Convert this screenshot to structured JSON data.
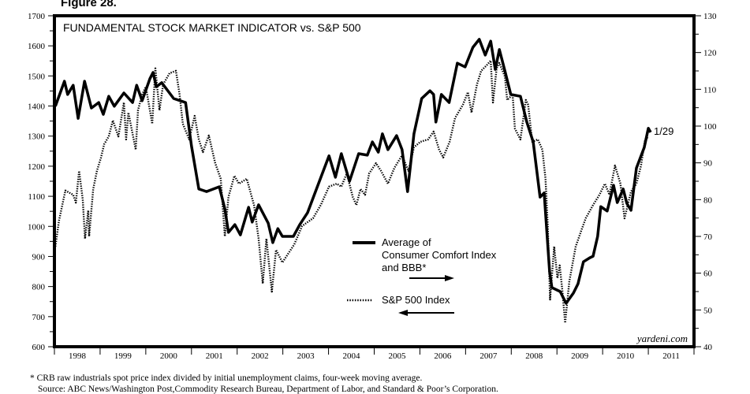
{
  "figure_label": "Figure 28.",
  "chart_data": {
    "type": "line",
    "title": "FUNDAMENTAL STOCK MARKET INDICATOR vs. S&P 500",
    "xlim": [
      1998,
      2012
    ],
    "x_tick_labels": [
      "1998",
      "1999",
      "2000",
      "2001",
      "2002",
      "2003",
      "2004",
      "2005",
      "2006",
      "2007",
      "2008",
      "2009",
      "2010",
      "2011"
    ],
    "y_left": {
      "range": [
        600,
        1700
      ],
      "ticks": [
        600,
        700,
        800,
        900,
        1000,
        1100,
        1200,
        1300,
        1400,
        1500,
        1600,
        1700
      ]
    },
    "y_right": {
      "range": [
        40,
        130
      ],
      "ticks": [
        40,
        50,
        60,
        70,
        80,
        90,
        100,
        110,
        120,
        130
      ]
    },
    "grid": false,
    "legend_placement": "center",
    "series": [
      {
        "name": "Average of Consumer Comfort Index and BBB*",
        "legend_lines": [
          "Average of",
          "Consumer Comfort Index",
          "and BBB*"
        ],
        "axis": "right",
        "style": "solid",
        "color": "#000000",
        "points": [
          [
            1998.02,
            105.4
          ],
          [
            1998.22,
            112.2
          ],
          [
            1998.29,
            108.6
          ],
          [
            1998.41,
            111.1
          ],
          [
            1998.52,
            102.1
          ],
          [
            1998.66,
            112.2
          ],
          [
            1998.81,
            104.9
          ],
          [
            1998.97,
            106.4
          ],
          [
            1999.07,
            103.2
          ],
          [
            1999.19,
            108.1
          ],
          [
            1999.31,
            105.4
          ],
          [
            1999.52,
            109.0
          ],
          [
            1999.71,
            106.4
          ],
          [
            1999.8,
            111.1
          ],
          [
            1999.92,
            106.9
          ],
          [
            2000.09,
            112.9
          ],
          [
            2000.16,
            114.6
          ],
          [
            2000.23,
            110.7
          ],
          [
            2000.35,
            111.8
          ],
          [
            2000.61,
            107.5
          ],
          [
            2000.87,
            106.4
          ],
          [
            2001.0,
            94.6
          ],
          [
            2001.16,
            82.9
          ],
          [
            2001.33,
            82.2
          ],
          [
            2001.61,
            83.5
          ],
          [
            2001.73,
            77.5
          ],
          [
            2001.81,
            71.1
          ],
          [
            2001.95,
            73.2
          ],
          [
            2002.07,
            70.4
          ],
          [
            2002.25,
            77.9
          ],
          [
            2002.33,
            73.9
          ],
          [
            2002.47,
            78.6
          ],
          [
            2002.68,
            73.6
          ],
          [
            2002.78,
            68.3
          ],
          [
            2002.89,
            72.1
          ],
          [
            2002.99,
            70.0
          ],
          [
            2003.23,
            70.0
          ],
          [
            2003.37,
            73.2
          ],
          [
            2003.54,
            76.4
          ],
          [
            2003.8,
            85.0
          ],
          [
            2004.01,
            91.9
          ],
          [
            2004.15,
            86.1
          ],
          [
            2004.28,
            92.5
          ],
          [
            2004.46,
            85.0
          ],
          [
            2004.66,
            92.5
          ],
          [
            2004.85,
            92.1
          ],
          [
            2004.96,
            95.7
          ],
          [
            2005.09,
            92.9
          ],
          [
            2005.18,
            97.9
          ],
          [
            2005.3,
            93.6
          ],
          [
            2005.49,
            97.4
          ],
          [
            2005.61,
            93.6
          ],
          [
            2005.73,
            82.2
          ],
          [
            2005.87,
            97.9
          ],
          [
            2006.04,
            107.5
          ],
          [
            2006.22,
            109.6
          ],
          [
            2006.3,
            108.6
          ],
          [
            2006.35,
            101.1
          ],
          [
            2006.47,
            108.6
          ],
          [
            2006.64,
            106.4
          ],
          [
            2006.82,
            117.1
          ],
          [
            2006.99,
            116.1
          ],
          [
            2007.16,
            121.4
          ],
          [
            2007.3,
            123.6
          ],
          [
            2007.43,
            119.3
          ],
          [
            2007.55,
            123.1
          ],
          [
            2007.65,
            115.4
          ],
          [
            2007.74,
            120.8
          ],
          [
            2007.86,
            115.0
          ],
          [
            2007.99,
            108.6
          ],
          [
            2008.2,
            108.1
          ],
          [
            2008.34,
            101.1
          ],
          [
            2008.48,
            95.7
          ],
          [
            2008.63,
            80.7
          ],
          [
            2008.72,
            81.8
          ],
          [
            2008.84,
            60.4
          ],
          [
            2008.89,
            56.1
          ],
          [
            2009.07,
            55.0
          ],
          [
            2009.2,
            51.8
          ],
          [
            2009.36,
            54.6
          ],
          [
            2009.46,
            57.1
          ],
          [
            2009.58,
            63.1
          ],
          [
            2009.72,
            64.2
          ],
          [
            2009.79,
            64.6
          ],
          [
            2009.89,
            70.0
          ],
          [
            2009.96,
            78.1
          ],
          [
            2010.1,
            76.9
          ],
          [
            2010.24,
            83.9
          ],
          [
            2010.32,
            79.2
          ],
          [
            2010.45,
            82.9
          ],
          [
            2010.53,
            79.0
          ],
          [
            2010.62,
            77.1
          ],
          [
            2010.74,
            88.6
          ],
          [
            2010.91,
            94.2
          ],
          [
            2011.0,
            99.4
          ],
          [
            2011.05,
            98.3
          ]
        ]
      },
      {
        "name": "S&P 500 Index",
        "axis": "left",
        "style": "dotted",
        "color": "#000000",
        "points": [
          [
            1998.02,
            933
          ],
          [
            1998.1,
            1019
          ],
          [
            1998.24,
            1119
          ],
          [
            1998.41,
            1105
          ],
          [
            1998.47,
            1079
          ],
          [
            1998.54,
            1184
          ],
          [
            1998.62,
            1090
          ],
          [
            1998.67,
            959
          ],
          [
            1998.74,
            1053
          ],
          [
            1998.76,
            967
          ],
          [
            1998.85,
            1124
          ],
          [
            1998.93,
            1184
          ],
          [
            1999.02,
            1229
          ],
          [
            1999.09,
            1273
          ],
          [
            1999.19,
            1299
          ],
          [
            1999.28,
            1352
          ],
          [
            1999.4,
            1299
          ],
          [
            1999.52,
            1412
          ],
          [
            1999.57,
            1289
          ],
          [
            1999.62,
            1378
          ],
          [
            1999.78,
            1255
          ],
          [
            1999.83,
            1386
          ],
          [
            1999.92,
            1438
          ],
          [
            2000.0,
            1464
          ],
          [
            2000.14,
            1341
          ],
          [
            2000.21,
            1525
          ],
          [
            2000.3,
            1386
          ],
          [
            2000.38,
            1472
          ],
          [
            2000.52,
            1509
          ],
          [
            2000.66,
            1517
          ],
          [
            2000.74,
            1438
          ],
          [
            2000.81,
            1341
          ],
          [
            2000.95,
            1289
          ],
          [
            2001.07,
            1367
          ],
          [
            2001.16,
            1289
          ],
          [
            2001.25,
            1247
          ],
          [
            2001.38,
            1302
          ],
          [
            2001.52,
            1210
          ],
          [
            2001.64,
            1158
          ],
          [
            2001.73,
            967
          ],
          [
            2001.81,
            1098
          ],
          [
            2001.94,
            1168
          ],
          [
            2002.04,
            1142
          ],
          [
            2002.21,
            1158
          ],
          [
            2002.37,
            1071
          ],
          [
            2002.47,
            959
          ],
          [
            2002.56,
            810
          ],
          [
            2002.64,
            959
          ],
          [
            2002.76,
            783
          ],
          [
            2002.85,
            922
          ],
          [
            2002.99,
            880
          ],
          [
            2003.25,
            940
          ],
          [
            2003.42,
            1001
          ],
          [
            2003.66,
            1027
          ],
          [
            2003.83,
            1071
          ],
          [
            2004.01,
            1132
          ],
          [
            2004.18,
            1142
          ],
          [
            2004.28,
            1132
          ],
          [
            2004.4,
            1176
          ],
          [
            2004.53,
            1098
          ],
          [
            2004.61,
            1071
          ],
          [
            2004.7,
            1124
          ],
          [
            2004.8,
            1105
          ],
          [
            2004.89,
            1176
          ],
          [
            2005.04,
            1210
          ],
          [
            2005.15,
            1184
          ],
          [
            2005.3,
            1142
          ],
          [
            2005.44,
            1194
          ],
          [
            2005.61,
            1236
          ],
          [
            2005.75,
            1184
          ],
          [
            2005.87,
            1263
          ],
          [
            2006.01,
            1281
          ],
          [
            2006.18,
            1289
          ],
          [
            2006.3,
            1315
          ],
          [
            2006.42,
            1255
          ],
          [
            2006.51,
            1229
          ],
          [
            2006.65,
            1281
          ],
          [
            2006.77,
            1360
          ],
          [
            2006.94,
            1404
          ],
          [
            2007.05,
            1446
          ],
          [
            2007.13,
            1378
          ],
          [
            2007.25,
            1472
          ],
          [
            2007.34,
            1517
          ],
          [
            2007.46,
            1535
          ],
          [
            2007.55,
            1551
          ],
          [
            2007.6,
            1412
          ],
          [
            2007.68,
            1525
          ],
          [
            2007.74,
            1543
          ],
          [
            2007.86,
            1498
          ],
          [
            2007.91,
            1420
          ],
          [
            2008.03,
            1438
          ],
          [
            2008.08,
            1325
          ],
          [
            2008.2,
            1289
          ],
          [
            2008.32,
            1420
          ],
          [
            2008.37,
            1404
          ],
          [
            2008.46,
            1281
          ],
          [
            2008.58,
            1289
          ],
          [
            2008.68,
            1255
          ],
          [
            2008.75,
            1158
          ],
          [
            2008.8,
            1001
          ],
          [
            2008.85,
            757
          ],
          [
            2008.94,
            933
          ],
          [
            2009.01,
            828
          ],
          [
            2009.06,
            870
          ],
          [
            2009.12,
            783
          ],
          [
            2009.18,
            679
          ],
          [
            2009.27,
            817
          ],
          [
            2009.41,
            933
          ],
          [
            2009.53,
            985
          ],
          [
            2009.63,
            1027
          ],
          [
            2009.79,
            1071
          ],
          [
            2009.93,
            1105
          ],
          [
            2010.05,
            1142
          ],
          [
            2010.15,
            1105
          ],
          [
            2010.27,
            1202
          ],
          [
            2010.39,
            1142
          ],
          [
            2010.48,
            1027
          ],
          [
            2010.62,
            1116
          ],
          [
            2010.74,
            1142
          ],
          [
            2010.84,
            1202
          ],
          [
            2010.93,
            1289
          ],
          [
            2011.01,
            1299
          ]
        ]
      }
    ],
    "annotations": {
      "end_label": "1/29",
      "watermark": "yardeni.com"
    }
  },
  "footnote": "*  CRB raw industrials spot price index divided by initial unemployment claims, four-week moving average.",
  "source": "Source: ABC News/Washington Post,Commodity Research Bureau, Department of Labor, and Standard & Poor’s Corporation."
}
